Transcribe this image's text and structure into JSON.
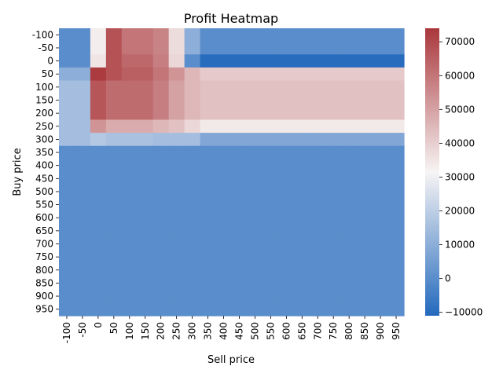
{
  "chart_data": {
    "type": "heatmap",
    "title": "Profit Heatmap",
    "xlabel": "Sell price",
    "ylabel": "Buy price",
    "x_categories": [
      "-100",
      "-50",
      "0",
      "50",
      "100",
      "150",
      "200",
      "250",
      "300",
      "350",
      "400",
      "450",
      "500",
      "550",
      "600",
      "650",
      "700",
      "750",
      "800",
      "850",
      "900",
      "950"
    ],
    "y_categories": [
      "-100",
      "-50",
      "0",
      "50",
      "100",
      "150",
      "200",
      "250",
      "300",
      "350",
      "400",
      "450",
      "500",
      "550",
      "600",
      "650",
      "700",
      "750",
      "800",
      "850",
      "900",
      "950"
    ],
    "row_values": [
      [
        0,
        0,
        33000,
        68000,
        60000,
        60000,
        57000,
        37000,
        10000,
        0,
        0,
        0,
        0,
        0,
        0,
        0,
        0,
        0,
        0,
        0,
        0,
        0
      ],
      [
        0,
        0,
        33000,
        68000,
        60000,
        60000,
        57000,
        37000,
        10000,
        0,
        0,
        0,
        0,
        0,
        0,
        0,
        0,
        0,
        0,
        0,
        0,
        0
      ],
      [
        0,
        0,
        35000,
        68000,
        63000,
        63000,
        58000,
        38000,
        0,
        -10000,
        -10000,
        -10000,
        -10000,
        -10000,
        -10000,
        -10000,
        -10000,
        -10000,
        -10000,
        -10000,
        -10000,
        -10000
      ],
      [
        10000,
        10000,
        73000,
        68000,
        65000,
        65000,
        60000,
        53000,
        45000,
        41000,
        41000,
        41000,
        41000,
        41000,
        41000,
        41000,
        41000,
        41000,
        41000,
        41000,
        41000,
        41000
      ],
      [
        15000,
        15000,
        67000,
        62000,
        62000,
        62000,
        58000,
        50000,
        45000,
        43000,
        43000,
        43000,
        43000,
        43000,
        43000,
        43000,
        43000,
        43000,
        43000,
        43000,
        43000,
        43000
      ],
      [
        15000,
        15000,
        67000,
        62000,
        62000,
        62000,
        58000,
        50000,
        45000,
        43000,
        43000,
        43000,
        43000,
        43000,
        43000,
        43000,
        43000,
        43000,
        43000,
        43000,
        43000,
        43000
      ],
      [
        15000,
        15000,
        67000,
        62000,
        62000,
        62000,
        58000,
        50000,
        45000,
        43000,
        43000,
        43000,
        43000,
        43000,
        43000,
        43000,
        43000,
        43000,
        43000,
        43000,
        43000,
        43000
      ],
      [
        15000,
        15000,
        53000,
        48000,
        48000,
        48000,
        45000,
        43000,
        38000,
        34000,
        34000,
        34000,
        34000,
        34000,
        34000,
        34000,
        34000,
        34000,
        34000,
        34000,
        34000,
        34000
      ],
      [
        15000,
        15000,
        18000,
        16000,
        16000,
        16000,
        15000,
        15000,
        15000,
        8000,
        8000,
        8000,
        8000,
        8000,
        8000,
        8000,
        8000,
        8000,
        8000,
        8000,
        8000,
        8000
      ],
      [
        0,
        0,
        0,
        0,
        0,
        0,
        0,
        0,
        0,
        0,
        0,
        0,
        0,
        0,
        0,
        0,
        0,
        0,
        0,
        0,
        0,
        0
      ],
      [
        0,
        0,
        0,
        0,
        0,
        0,
        0,
        0,
        0,
        0,
        0,
        0,
        0,
        0,
        0,
        0,
        0,
        0,
        0,
        0,
        0,
        0
      ],
      [
        0,
        0,
        0,
        0,
        0,
        0,
        0,
        0,
        0,
        0,
        0,
        0,
        0,
        0,
        0,
        0,
        0,
        0,
        0,
        0,
        0,
        0
      ],
      [
        0,
        0,
        0,
        0,
        0,
        0,
        0,
        0,
        0,
        0,
        0,
        0,
        0,
        0,
        0,
        0,
        0,
        0,
        0,
        0,
        0,
        0
      ],
      [
        0,
        0,
        0,
        0,
        0,
        0,
        0,
        0,
        0,
        0,
        0,
        0,
        0,
        0,
        0,
        0,
        0,
        0,
        0,
        0,
        0,
        0
      ],
      [
        0,
        0,
        0,
        0,
        0,
        0,
        0,
        0,
        0,
        0,
        0,
        0,
        0,
        0,
        0,
        0,
        0,
        0,
        0,
        0,
        0,
        0
      ],
      [
        0,
        0,
        0,
        0,
        0,
        0,
        0,
        0,
        0,
        0,
        0,
        0,
        0,
        0,
        0,
        0,
        0,
        0,
        0,
        0,
        0,
        0
      ],
      [
        0,
        0,
        0,
        0,
        0,
        0,
        0,
        0,
        0,
        0,
        0,
        0,
        0,
        0,
        0,
        0,
        0,
        0,
        0,
        0,
        0,
        0
      ],
      [
        0,
        0,
        0,
        0,
        0,
        0,
        0,
        0,
        0,
        0,
        0,
        0,
        0,
        0,
        0,
        0,
        0,
        0,
        0,
        0,
        0,
        0
      ],
      [
        0,
        0,
        0,
        0,
        0,
        0,
        0,
        0,
        0,
        0,
        0,
        0,
        0,
        0,
        0,
        0,
        0,
        0,
        0,
        0,
        0,
        0
      ],
      [
        0,
        0,
        0,
        0,
        0,
        0,
        0,
        0,
        0,
        0,
        0,
        0,
        0,
        0,
        0,
        0,
        0,
        0,
        0,
        0,
        0,
        0
      ],
      [
        0,
        0,
        0,
        0,
        0,
        0,
        0,
        0,
        0,
        0,
        0,
        0,
        0,
        0,
        0,
        0,
        0,
        0,
        0,
        0,
        0,
        0
      ],
      [
        0,
        0,
        0,
        0,
        0,
        0,
        0,
        0,
        0,
        0,
        0,
        0,
        0,
        0,
        0,
        0,
        0,
        0,
        0,
        0,
        0,
        0
      ]
    ],
    "colorbar": {
      "colormap": "vlag",
      "vmin": -11000,
      "vmax": 74000,
      "ticks": [
        -10000,
        0,
        10000,
        20000,
        30000,
        40000,
        50000,
        60000,
        70000
      ],
      "tick_labels": [
        "−10000",
        "0",
        "10000",
        "20000",
        "30000",
        "40000",
        "50000",
        "60000",
        "70000"
      ],
      "stops": [
        {
          "value": -11000,
          "color": "#2369bd"
        },
        {
          "value": 31500,
          "color": "#f7f4f4"
        },
        {
          "value": 74000,
          "color": "#a9373b"
        }
      ]
    }
  }
}
